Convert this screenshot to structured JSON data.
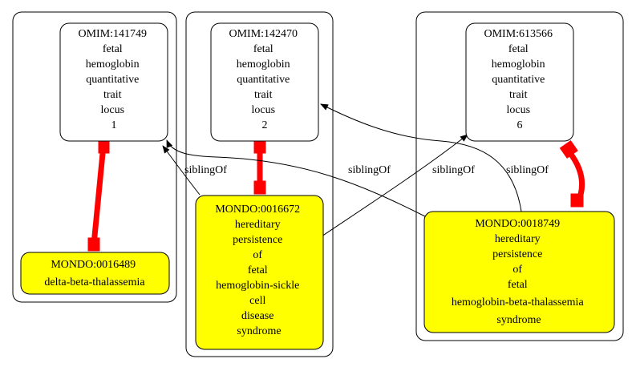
{
  "nodes": {
    "omim_141749": [
      "OMIM:141749",
      "fetal",
      "hemoglobin",
      "quantitative",
      "trait",
      "locus",
      "1"
    ],
    "omim_142470": [
      "OMIM:142470",
      "fetal",
      "hemoglobin",
      "quantitative",
      "trait",
      "locus",
      "2"
    ],
    "omim_613566": [
      "OMIM:613566",
      "fetal",
      "hemoglobin",
      "quantitative",
      "trait",
      "locus",
      "6"
    ],
    "mondo_0016489": [
      "MONDO:0016489",
      "delta-beta-thalassemia"
    ],
    "mondo_0016672": [
      "MONDO:0016672",
      "hereditary",
      "persistence",
      "of",
      "fetal",
      "hemoglobin-sickle",
      "cell",
      "disease",
      "syndrome"
    ],
    "mondo_0018749": [
      "MONDO:0018749",
      "hereditary",
      "persistence",
      "of",
      "fetal",
      "hemoglobin-beta-thalassemia",
      "syndrome"
    ]
  },
  "edges": {
    "e1": "siblingOf",
    "e2": "siblingOf",
    "e3": "siblingOf",
    "e4": "siblingOf"
  },
  "colors": {
    "disease_fill": "#ffff00",
    "gene_fill": "#ffffff",
    "equivalence_edge": "#ff0000",
    "relation_edge": "#000000"
  }
}
